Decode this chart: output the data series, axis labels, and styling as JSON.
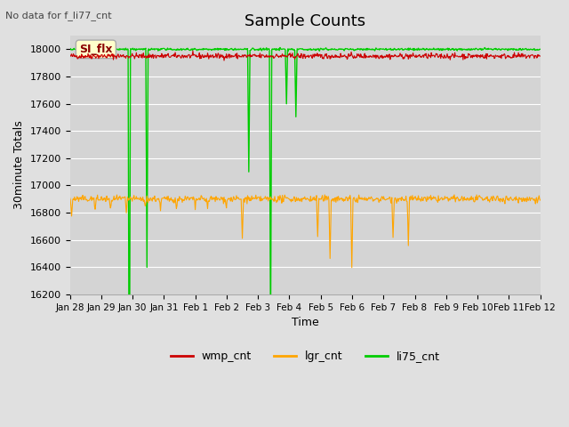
{
  "title": "Sample Counts",
  "subtitle": "No data for f_li77_cnt",
  "xlabel": "Time",
  "ylabel": "30minute Totals",
  "annotation": "SI_flx",
  "ylim": [
    16200,
    18100
  ],
  "x_tick_labels": [
    "Jan 28",
    "Jan 29",
    "Jan 30",
    "Jan 31",
    "Feb 1",
    "Feb 2",
    "Feb 3",
    "Feb 4",
    "Feb 5",
    "Feb 6",
    "Feb 7",
    "Feb 8",
    "Feb 9",
    "Feb 10",
    "Feb 11",
    "Feb 12"
  ],
  "wmp_cnt_color": "#cc0000",
  "lgr_cnt_color": "#ffa500",
  "li75_cnt_color": "#00cc00",
  "legend_labels": [
    "wmp_cnt",
    "lgr_cnt",
    "li75_cnt"
  ],
  "wmp_base": 17950,
  "lgr_base": 16900,
  "li75_base": 18000,
  "seed": 42
}
